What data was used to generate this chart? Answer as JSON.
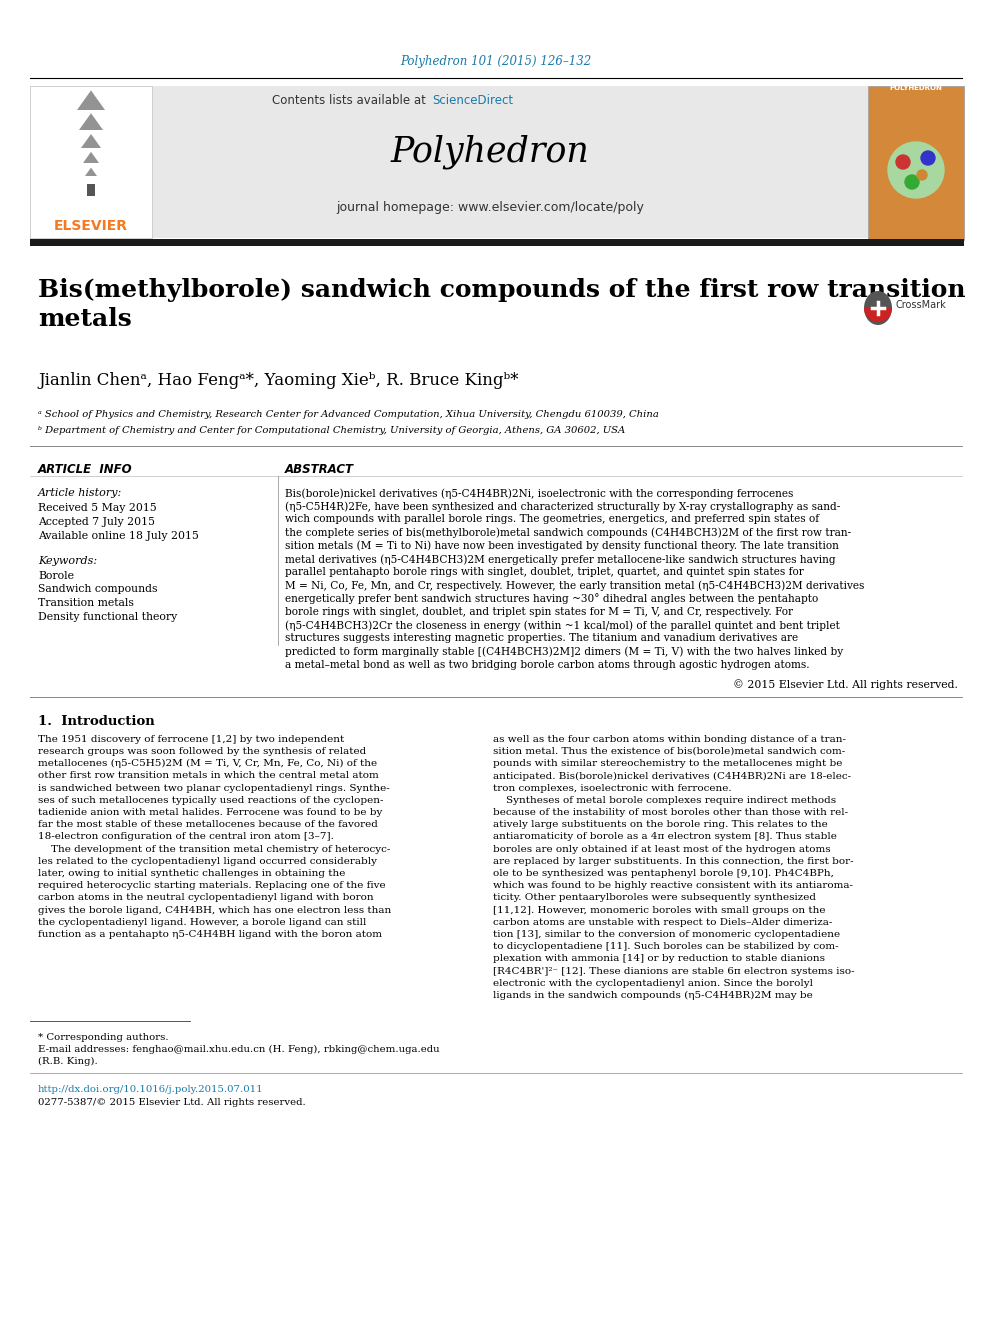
{
  "page_bg": "#ffffff",
  "top_doi": "Polyhedron 101 (2015) 126–132",
  "doi_color": "#1a7aaa",
  "header_bg": "#e8e8e8",
  "elsevier_color": "#f47920",
  "journal_name": "Polyhedron",
  "contents_text": "Contents lists available at ",
  "science_direct": "ScienceDirect",
  "science_direct_color": "#1a7aaa",
  "homepage_text": "journal homepage: www.elsevier.com/locate/poly",
  "title": "Bis(methylborole) sandwich compounds of the first row transition\nmetals",
  "title_color": "#000000",
  "author_line": "Jianlin Chenᵃ, Hao Fengᵃ*, Yaoming Xieᵇ, R. Bruce Kingᵇ*",
  "affiliation_a": "ᵃ School of Physics and Chemistry, Research Center for Advanced Computation, Xihua University, Chengdu 610039, China",
  "affiliation_b": "ᵇ Department of Chemistry and Center for Computational Chemistry, University of Georgia, Athens, GA 30602, USA",
  "article_info_header": "ARTICLE  INFO",
  "abstract_header": "ABSTRACT",
  "article_history": "Article history:",
  "received": "Received 5 May 2015",
  "accepted": "Accepted 7 July 2015",
  "available": "Available online 18 July 2015",
  "keywords_header": "Keywords:",
  "keyword1": "Borole",
  "keyword2": "Sandwich compounds",
  "keyword3": "Transition metals",
  "keyword4": "Density functional theory",
  "abstract_text": "Bis(borole)nickel derivatives (η5-C4H4BR)2Ni, isoelectronic with the corresponding ferrocenes\n(η5-C5H4R)2Fe, have been synthesized and characterized structurally by X-ray crystallography as sand-\nwich compounds with parallel borole rings. The geometries, energetics, and preferred spin states of\nthe complete series of bis(methylborole)metal sandwich compounds (C4H4BCH3)2M of the first row tran-\nsition metals (M = Ti to Ni) have now been investigated by density functional theory. The late transition\nmetal derivatives (η5-C4H4BCH3)2M energetically prefer metallocene-like sandwich structures having\nparallel pentahapto borole rings with singlet, doublet, triplet, quartet, and quintet spin states for\nM = Ni, Co, Fe, Mn, and Cr, respectively. However, the early transition metal (η5-C4H4BCH3)2M derivatives\nenergetically prefer bent sandwich structures having ~30° dihedral angles between the pentahapto\nborole rings with singlet, doublet, and triplet spin states for M = Ti, V, and Cr, respectively. For\n(η5-C4H4BCH3)2Cr the closeness in energy (within ~1 kcal/mol) of the parallel quintet and bent triplet\nstructures suggests interesting magnetic properties. The titanium and vanadium derivatives are\npredicted to form marginally stable [(C4H4BCH3)2M]2 dimers (M = Ti, V) with the two halves linked by\na metal–metal bond as well as two bridging borole carbon atoms through agostic hydrogen atoms.",
  "copyright": "© 2015 Elsevier Ltd. All rights reserved.",
  "intro_header": "1.  Introduction",
  "intro_col1": [
    "The 1951 discovery of ferrocene [1,2] by two independent",
    "research groups was soon followed by the synthesis of related",
    "metallocenes (η5-C5H5)2M (M = Ti, V, Cr, Mn, Fe, Co, Ni) of the",
    "other first row transition metals in which the central metal atom",
    "is sandwiched between two planar cyclopentadienyl rings. Synthe-",
    "ses of such metallocenes typically used reactions of the cyclopen-",
    "tadienide anion with metal halides. Ferrocene was found to be by",
    "far the most stable of these metallocenes because of the favored",
    "18-electron configuration of the central iron atom [3–7].",
    "    The development of the transition metal chemistry of heterocyc-",
    "les related to the cyclopentadienyl ligand occurred considerably",
    "later, owing to initial synthetic challenges in obtaining the",
    "required heterocyclic starting materials. Replacing one of the five",
    "carbon atoms in the neutral cyclopentadienyl ligand with boron",
    "gives the borole ligand, C4H4BH, which has one electron less than",
    "the cyclopentadienyl ligand. However, a borole ligand can still",
    "function as a pentahapto η5-C4H4BH ligand with the boron atom"
  ],
  "intro_col2": [
    "as well as the four carbon atoms within bonding distance of a tran-",
    "sition metal. Thus the existence of bis(borole)metal sandwich com-",
    "pounds with similar stereochemistry to the metallocenes might be",
    "anticipated. Bis(borole)nickel derivatives (C4H4BR)2Ni are 18-elec-",
    "tron complexes, isoelectronic with ferrocene.",
    "    Syntheses of metal borole complexes require indirect methods",
    "because of the instability of most boroles other than those with rel-",
    "atively large substituents on the borole ring. This relates to the",
    "antiaromaticity of borole as a 4π electron system [8]. Thus stable",
    "boroles are only obtained if at least most of the hydrogen atoms",
    "are replaced by larger substituents. In this connection, the first bor-",
    "ole to be synthesized was pentaphenyl borole [9,10]. Ph4C4BPh,",
    "which was found to be highly reactive consistent with its antiaroma-",
    "ticity. Other pentaarylboroles were subsequently synthesized",
    "[11,12]. However, monomeric boroles with small groups on the",
    "carbon atoms are unstable with respect to Diels–Alder dimeriza-",
    "tion [13], similar to the conversion of monomeric cyclopentadiene",
    "to dicyclopentadiene [11]. Such boroles can be stabilized by com-",
    "plexation with ammonia [14] or by reduction to stable dianions",
    "[R4C4BR']²⁻ [12]. These dianions are stable 6π electron systems iso-",
    "electronic with the cyclopentadienyl anion. Since the borolyl",
    "ligands in the sandwich compounds (η5-C4H4BR)2M may be"
  ],
  "footnote_corresponding": "* Corresponding authors.",
  "footnote_email": "E-mail addresses: fenghao@mail.xhu.edu.cn (H. Feng), rbking@chem.uga.edu",
  "footnote_email2": "(R.B. King).",
  "footnote_doi": "http://dx.doi.org/10.1016/j.poly.2015.07.011",
  "footnote_issn": "0277-5387/© 2015 Elsevier Ltd. All rights reserved.",
  "separator_color": "#000000",
  "thick_bar_color": "#1a1a1a"
}
